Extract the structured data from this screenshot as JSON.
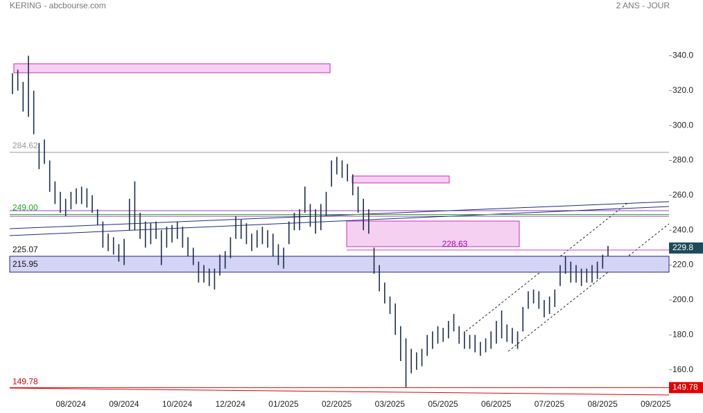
{
  "chart_data": {
    "type": "ohlc",
    "title": "KERING - abcbourse.com",
    "subtitle": "2 ANS - JOUR",
    "categories": [
      null,
      null,
      null,
      null,
      null,
      null,
      null,
      null,
      null,
      null,
      null,
      "08/2024",
      null,
      null,
      null,
      null,
      null,
      null,
      null,
      null,
      null,
      "09/2024",
      null,
      null,
      null,
      null,
      null,
      null,
      null,
      null,
      null,
      "10/2024",
      null,
      null,
      null,
      null,
      null,
      null,
      null,
      null,
      null,
      "12/2024",
      null,
      null,
      null,
      null,
      null,
      null,
      null,
      null,
      null,
      "01/2025",
      null,
      null,
      null,
      null,
      null,
      null,
      null,
      null,
      null,
      "02/2025",
      null,
      null,
      null,
      null,
      null,
      null,
      null,
      null,
      null,
      "03/2025",
      null,
      null,
      null,
      null,
      null,
      null,
      null,
      null,
      null,
      "05/2025",
      null,
      null,
      null,
      null,
      null,
      null,
      null,
      null,
      null,
      "06/2025",
      null,
      null,
      null,
      null,
      null,
      null,
      null,
      null,
      null,
      "07/2025",
      null,
      null,
      null,
      null,
      null,
      null,
      null,
      null,
      null,
      "08/2025",
      null,
      null,
      null,
      null,
      null,
      null,
      null,
      null,
      null,
      "09/2025",
      null,
      null
    ],
    "high": [
      330,
      332,
      325,
      340,
      320,
      290,
      292,
      280,
      268,
      262,
      258,
      262,
      264,
      265,
      264,
      260,
      252,
      245,
      238,
      236,
      232,
      235,
      258,
      268,
      250,
      245,
      244,
      245,
      240,
      242,
      243,
      245,
      242,
      236,
      230,
      222,
      220,
      218,
      218,
      226,
      228,
      236,
      248,
      246,
      244,
      238,
      240,
      242,
      240,
      238,
      232,
      230,
      245,
      250,
      252,
      265,
      255,
      252,
      255,
      262,
      280,
      282,
      280,
      278,
      272,
      265,
      258,
      252,
      230,
      220,
      210,
      202,
      198,
      185,
      178,
      172,
      170,
      172,
      180,
      182,
      185,
      184,
      188,
      192,
      185,
      182,
      180,
      180,
      176,
      178,
      182,
      188,
      194,
      186,
      184,
      182,
      196,
      205,
      206,
      205,
      200,
      202,
      206,
      220,
      225,
      222,
      220,
      218,
      218,
      220,
      222,
      226,
      231,
      null,
      null,
      null,
      null,
      null,
      null,
      null,
      null,
      null,
      null,
      null
    ],
    "low": [
      318,
      320,
      308,
      305,
      295,
      275,
      278,
      262,
      255,
      250,
      248,
      252,
      255,
      255,
      253,
      250,
      243,
      230,
      228,
      226,
      222,
      220,
      240,
      240,
      235,
      230,
      232,
      235,
      220,
      230,
      233,
      235,
      230,
      225,
      220,
      210,
      210,
      208,
      206,
      214,
      218,
      224,
      235,
      235,
      232,
      228,
      230,
      232,
      230,
      225,
      220,
      218,
      232,
      240,
      240,
      250,
      242,
      238,
      240,
      248,
      265,
      272,
      270,
      268,
      260,
      250,
      240,
      238,
      215,
      205,
      198,
      192,
      180,
      165,
      150,
      158,
      160,
      162,
      168,
      172,
      175,
      176,
      178,
      182,
      175,
      172,
      172,
      170,
      168,
      170,
      172,
      175,
      178,
      176,
      175,
      172,
      182,
      195,
      198,
      195,
      190,
      192,
      196,
      208,
      215,
      210,
      210,
      208,
      210,
      210,
      212,
      218,
      225,
      null,
      null,
      null,
      null,
      null,
      null,
      null,
      null,
      null,
      null,
      null
    ],
    "color": "#1c2c4c",
    "ylim": [
      140,
      364
    ],
    "yticks": [
      {
        "value": 160,
        "label": "160.0"
      },
      {
        "value": 180,
        "label": "180.0"
      },
      {
        "value": 200,
        "label": "200.0"
      },
      {
        "value": 220,
        "label": "220.0"
      },
      {
        "value": 240,
        "label": "240.0"
      },
      {
        "value": 260,
        "label": "260.0"
      },
      {
        "value": 280,
        "label": "280.0"
      },
      {
        "value": 300,
        "label": "300.0"
      },
      {
        "value": 320,
        "label": "320.0"
      },
      {
        "value": 340,
        "label": "340.0"
      }
    ],
    "levels": [
      {
        "value": 284.62,
        "color": "#999999"
      },
      {
        "value": 249,
        "label": "249.00",
        "color": "#22aa22"
      },
      {
        "value": 225.07,
        "color": "#111111"
      },
      {
        "value": 215.95,
        "color": "#111111"
      },
      {
        "value": 228.63,
        "color": "#b000b0"
      },
      {
        "value": 149.78,
        "color": "#e00000"
      }
    ],
    "last": 229.8
  }
}
